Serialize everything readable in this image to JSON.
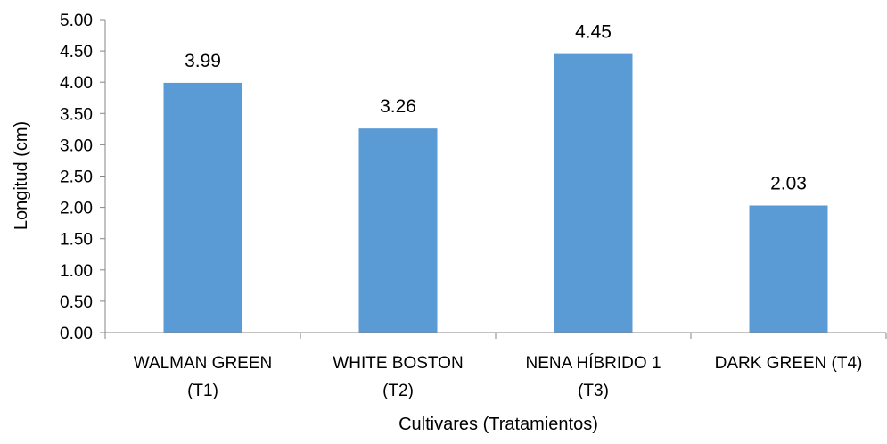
{
  "chart_data": {
    "type": "bar",
    "title": "",
    "xlabel": "Cultivares (Tratamientos)",
    "ylabel": "Longitud (cm)",
    "ylim": [
      0,
      5
    ],
    "yticks": [
      "0.00",
      "0.50",
      "1.00",
      "1.50",
      "2.00",
      "2.50",
      "3.00",
      "3.50",
      "4.00",
      "4.50",
      "5.00"
    ],
    "categories": [
      [
        "WALMAN GREEN",
        "(T1)"
      ],
      [
        "WHITE BOSTON",
        "(T2)"
      ],
      [
        "NENA HÍBRIDO 1",
        "(T3)"
      ],
      [
        "DARK GREEN (T4)"
      ]
    ],
    "values": [
      3.99,
      3.26,
      4.45,
      2.03
    ],
    "data_labels": [
      "3.99",
      "3.26",
      "4.45",
      "2.03"
    ],
    "grid": false,
    "legend": "none",
    "bar_color": "#5B9BD5",
    "axis_color": "#868686"
  }
}
